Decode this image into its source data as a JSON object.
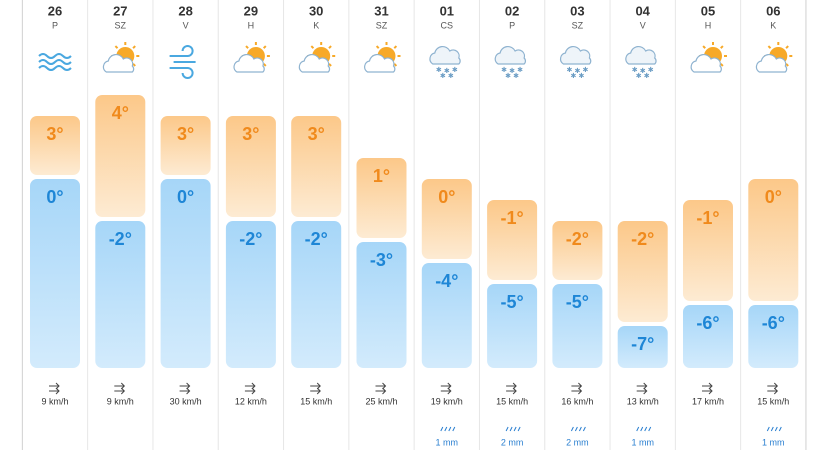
{
  "days": [
    {
      "date": "26",
      "weekday": "P",
      "icon": "fog",
      "high": {
        "value": 3,
        "label": "3°"
      },
      "low": {
        "value": 0,
        "label": "0°"
      },
      "wind": "9 km/h"
    },
    {
      "date": "27",
      "weekday": "SZ",
      "icon": "sun-cloud",
      "high": {
        "value": 4,
        "label": "4°"
      },
      "low": {
        "value": -2,
        "label": "-2°"
      },
      "wind": "9 km/h"
    },
    {
      "date": "28",
      "weekday": "V",
      "icon": "wind",
      "high": {
        "value": 3,
        "label": "3°"
      },
      "low": {
        "value": 0,
        "label": "0°"
      },
      "wind": "30 km/h"
    },
    {
      "date": "29",
      "weekday": "H",
      "icon": "sun-cloud",
      "high": {
        "value": 3,
        "label": "3°"
      },
      "low": {
        "value": -2,
        "label": "-2°"
      },
      "wind": "12 km/h"
    },
    {
      "date": "30",
      "weekday": "K",
      "icon": "sun-cloud",
      "high": {
        "value": 3,
        "label": "3°"
      },
      "low": {
        "value": -2,
        "label": "-2°"
      },
      "wind": "15 km/h"
    },
    {
      "date": "31",
      "weekday": "SZ",
      "icon": "sun-cloud",
      "high": {
        "value": 1,
        "label": "1°"
      },
      "low": {
        "value": -3,
        "label": "-3°"
      },
      "wind": "25 km/h"
    },
    {
      "date": "01",
      "weekday": "CS",
      "icon": "snow",
      "high": {
        "value": 0,
        "label": "0°"
      },
      "low": {
        "value": -4,
        "label": "-4°"
      },
      "wind": "19 km/h",
      "precip": "1 mm"
    },
    {
      "date": "02",
      "weekday": "P",
      "icon": "snow",
      "high": {
        "value": -1,
        "label": "-1°"
      },
      "low": {
        "value": -5,
        "label": "-5°"
      },
      "wind": "15 km/h",
      "precip": "2 mm"
    },
    {
      "date": "03",
      "weekday": "SZ",
      "icon": "snow",
      "high": {
        "value": -2,
        "label": "-2°"
      },
      "low": {
        "value": -5,
        "label": "-5°"
      },
      "wind": "16 km/h",
      "precip": "2 mm"
    },
    {
      "date": "04",
      "weekday": "V",
      "icon": "snow",
      "high": {
        "value": -2,
        "label": "-2°"
      },
      "low": {
        "value": -7,
        "label": "-7°"
      },
      "wind": "13 km/h",
      "precip": "1 mm"
    },
    {
      "date": "05",
      "weekday": "H",
      "icon": "sun-cloud",
      "high": {
        "value": -1,
        "label": "-1°"
      },
      "low": {
        "value": -6,
        "label": "-6°"
      },
      "wind": "17 km/h"
    },
    {
      "date": "06",
      "weekday": "K",
      "icon": "sun-cloud",
      "high": {
        "value": 0,
        "label": "0°"
      },
      "low": {
        "value": -6,
        "label": "-6°"
      },
      "wind": "15 km/h",
      "precip": "1 mm"
    }
  ]
}
